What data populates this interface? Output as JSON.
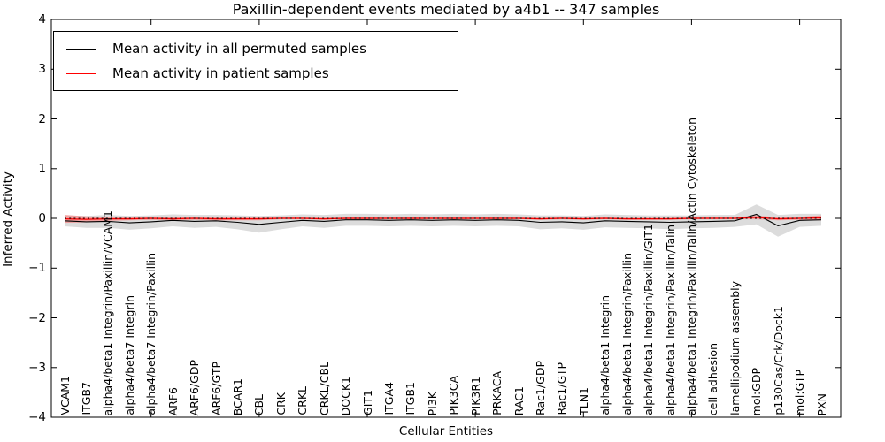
{
  "figure": {
    "title": "Paxillin-dependent events mediated by a4b1 -- 347 samples",
    "xlabel": "Cellular Entities",
    "ylabel": "Inferred Activity"
  },
  "chart_data": {
    "type": "line",
    "title": "Paxillin-dependent events mediated by a4b1 -- 347 samples",
    "xlabel": "Cellular Entities",
    "ylabel": "Inferred Activity",
    "ylim": [
      -4,
      4
    ],
    "yticks": [
      -4,
      -3,
      -2,
      -1,
      0,
      1,
      2,
      3,
      4
    ],
    "grid": false,
    "legend_position": "upper left",
    "categories": [
      "VCAM1",
      "ITGB7",
      "alpha4/beta1 Integrin/Paxillin/VCAM1",
      "alpha4/beta7 Integrin",
      "alpha4/beta7 Integrin/Paxillin",
      "ARF6",
      "ARF6/GDP",
      "ARF6/GTP",
      "BCAR1",
      "CBL",
      "CRK",
      "CRKL",
      "CRKL/CBL",
      "DOCK1",
      "GIT1",
      "ITGA4",
      "ITGB1",
      "PI3K",
      "PIK3CA",
      "PIK3R1",
      "PRKACA",
      "RAC1",
      "Rac1/GDP",
      "Rac1/GTP",
      "TLN1",
      "alpha4/beta1 Integrin",
      "alpha4/beta1 Integrin/Paxillin",
      "alpha4/beta1 Integrin/Paxillin/GIT1",
      "alpha4/beta1 Integrin/Paxillin/Talin",
      "alpha4/beta1 Integrin/Paxillin/Talin/Actin Cytoskeleton",
      "cell adhesion",
      "lamellipodium assembly",
      "mol:GDP",
      "p130Cas/Crk/Dock1",
      "mol:GTP",
      "PXN"
    ],
    "series": [
      {
        "name": "Mean activity in all permuted samples",
        "color": "#000000",
        "band_color": "#dcdcdc",
        "values": [
          -0.05,
          -0.07,
          -0.06,
          -0.09,
          -0.07,
          -0.04,
          -0.06,
          -0.05,
          -0.08,
          -0.12,
          -0.08,
          -0.04,
          -0.06,
          -0.03,
          -0.03,
          -0.04,
          -0.03,
          -0.04,
          -0.03,
          -0.04,
          -0.03,
          -0.04,
          -0.08,
          -0.07,
          -0.09,
          -0.05,
          -0.06,
          -0.07,
          -0.08,
          -0.07,
          -0.06,
          -0.05,
          0.08,
          -0.15,
          -0.04,
          -0.03
        ],
        "band_halfwidth": [
          0.11,
          0.12,
          0.13,
          0.14,
          0.13,
          0.12,
          0.13,
          0.12,
          0.14,
          0.17,
          0.14,
          0.12,
          0.13,
          0.12,
          0.12,
          0.12,
          0.12,
          0.12,
          0.12,
          0.12,
          0.12,
          0.12,
          0.14,
          0.13,
          0.14,
          0.13,
          0.13,
          0.13,
          0.14,
          0.13,
          0.13,
          0.12,
          0.2,
          0.22,
          0.13,
          0.12
        ]
      },
      {
        "name": "Mean activity in patient samples",
        "color": "#ff0000",
        "band_color": "#f0a0a0",
        "values": [
          -0.01,
          -0.02,
          -0.01,
          -0.01,
          0,
          -0.01,
          0,
          -0.01,
          -0.01,
          -0.01,
          0,
          0,
          -0.01,
          0,
          0,
          0,
          0,
          0,
          0,
          0,
          0,
          0,
          -0.01,
          0,
          -0.01,
          0,
          -0.01,
          -0.01,
          -0.01,
          0,
          0,
          0,
          0.02,
          -0.01,
          0,
          0.01
        ],
        "band_halfwidth": [
          0.08,
          0.06,
          0.04,
          0.03,
          0.03,
          0.03,
          0.03,
          0.03,
          0.03,
          0.03,
          0.02,
          0.02,
          0.02,
          0.02,
          0.02,
          0.02,
          0.02,
          0.02,
          0.02,
          0.02,
          0.02,
          0.02,
          0.02,
          0.02,
          0.02,
          0.02,
          0.02,
          0.02,
          0.02,
          0.02,
          0.02,
          0.02,
          0.04,
          0.03,
          0.03,
          0.05
        ]
      }
    ],
    "reference_line": {
      "y": 0,
      "style": "dashed",
      "color": "#000000"
    }
  },
  "legend": {
    "entries": [
      {
        "label": "Mean activity in all permuted samples",
        "color": "#000000"
      },
      {
        "label": "Mean activity in patient samples",
        "color": "#ff0000"
      }
    ]
  },
  "colors": {
    "frame": "#000000",
    "permuted_line": "#000000",
    "patient_line": "#ff0000",
    "permuted_band": "#dcdcdc",
    "patient_band": "#f0a0a0",
    "background": "#ffffff"
  }
}
